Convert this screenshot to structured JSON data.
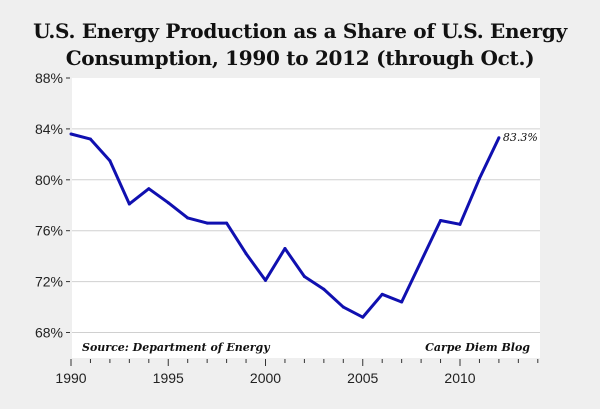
{
  "chart_data": {
    "type": "line",
    "title_line1": "U.S. Energy Production as a Share of U.S. Energy",
    "title_line2": "Consumption, 1990 to 2012 (through Oct.)",
    "xlabel": "",
    "ylabel": "",
    "x": [
      1990,
      1991,
      1992,
      1993,
      1994,
      1995,
      1996,
      1997,
      1998,
      1999,
      2000,
      2001,
      2002,
      2003,
      2004,
      2005,
      2006,
      2007,
      2008,
      2009,
      2010,
      2011,
      2012
    ],
    "series": [
      {
        "name": "Production share of consumption",
        "color": "#1010b0",
        "values": [
          83.6,
          83.2,
          81.5,
          78.1,
          79.3,
          78.2,
          77.0,
          76.6,
          76.6,
          74.2,
          72.1,
          74.6,
          72.4,
          71.4,
          70.0,
          69.2,
          71.0,
          70.4,
          73.6,
          76.8,
          76.5,
          80.1,
          83.3
        ]
      }
    ],
    "ylim": [
      68,
      88
    ],
    "xlim": [
      1990,
      2014
    ],
    "yticks": [
      68,
      72,
      76,
      80,
      84,
      88
    ],
    "ytick_labels": [
      "68%",
      "72%",
      "76%",
      "80%",
      "84%",
      "88%"
    ],
    "xticks": [
      1990,
      1995,
      2000,
      2005,
      2010
    ],
    "xtick_labels": [
      "1990",
      "1995",
      "2000",
      "2005",
      "2010"
    ],
    "grid": true,
    "data_label": "83.3%",
    "source_note": "Source: Department of Energy",
    "credit_note": "Carpe Diem Blog"
  }
}
